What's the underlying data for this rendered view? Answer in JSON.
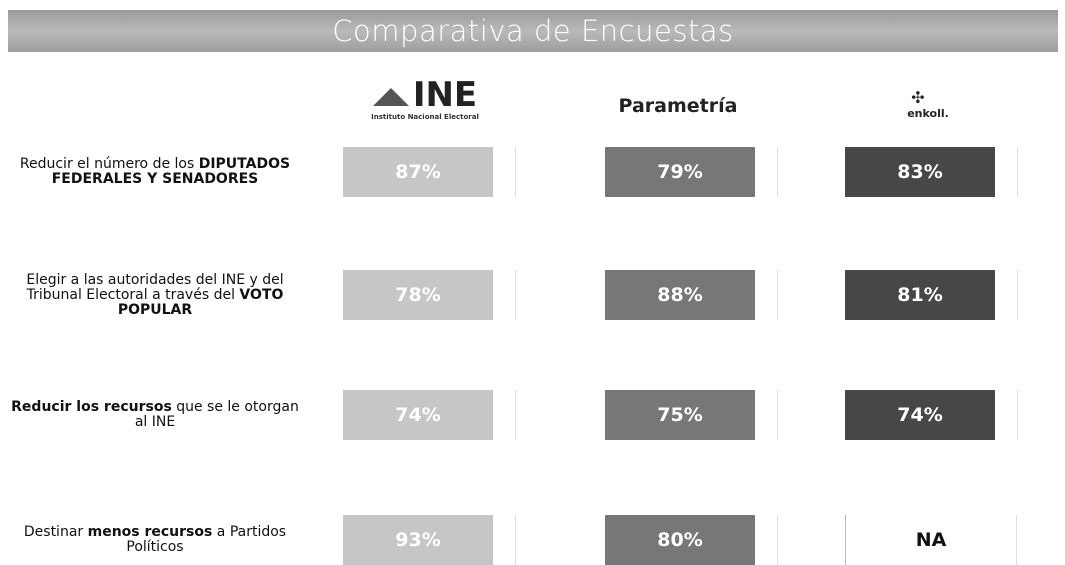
{
  "header": {
    "title": "Comparativa de Encuestas"
  },
  "columns": [
    {
      "name": "INE",
      "subtitle": "Instituto Nacional Electoral",
      "color": "#c6c6c6"
    },
    {
      "name": "Parametría",
      "color": "#777777"
    },
    {
      "name": "enkoll.",
      "color": "#474747"
    }
  ],
  "rows": [
    {
      "question": [
        {
          "text": "Reducir el número de los ",
          "bold": false
        },
        {
          "text": "DIPUTADOS FEDERALES Y SENADORES",
          "bold": true
        }
      ],
      "cells": [
        "87%",
        "79%",
        "83%"
      ]
    },
    {
      "question": [
        {
          "text": "Elegir a las autoridades del INE y del Tribunal Electoral a través del ",
          "bold": false
        },
        {
          "text": "VOTO POPULAR",
          "bold": true
        }
      ],
      "cells": [
        "78%",
        "88%",
        "81%"
      ]
    },
    {
      "question": [
        {
          "text": "Reducir los recursos",
          "bold": true
        },
        {
          "text": " que se le otorgan al INE",
          "bold": false
        }
      ],
      "cells": [
        "74%",
        "75%",
        "74%"
      ]
    },
    {
      "question": [
        {
          "text": "Destinar ",
          "bold": false
        },
        {
          "text": "menos recursos",
          "bold": true
        },
        {
          "text": " a Partidos Políticos",
          "bold": false
        }
      ],
      "cells": [
        "93%",
        "80%",
        "NA"
      ]
    }
  ]
}
